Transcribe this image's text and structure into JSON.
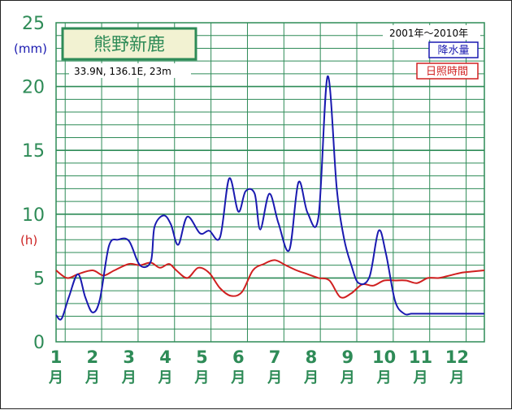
{
  "station": {
    "name": "熊野新鹿",
    "coords": "33.9N,  136.1E,  23m"
  },
  "period": "2001年～2010年",
  "colors": {
    "grid": "#2e8b57",
    "precip": "#1a1ab0",
    "sunshine": "#d02020",
    "title_bg": "#f2f2d2"
  },
  "chart_data": {
    "type": "line",
    "y_units_left": [
      "(mm)",
      "(h)"
    ],
    "y_ticks": [
      "0",
      "5",
      "10",
      "15",
      "20",
      "25"
    ],
    "ylim": [
      0,
      25
    ],
    "xlim": [
      1,
      12.75
    ],
    "month_numbers": [
      "1",
      "2",
      "3",
      "4",
      "5",
      "6",
      "7",
      "8",
      "9",
      "10",
      "11",
      "12"
    ],
    "month_kanji": "月",
    "legend": [
      "降水量",
      "日照時間"
    ],
    "series": [
      {
        "name": "降水量",
        "x": [
          1,
          1.15,
          1.35,
          1.6,
          1.8,
          2.0,
          2.2,
          2.45,
          2.7,
          3.0,
          3.3,
          3.6,
          3.7,
          3.95,
          4.15,
          4.35,
          4.6,
          4.95,
          5.2,
          5.5,
          5.75,
          6.0,
          6.2,
          6.45,
          6.6,
          6.85,
          7.1,
          7.4,
          7.65,
          7.9,
          8.2,
          8.45,
          8.7,
          8.9,
          9.1,
          9.3,
          9.6,
          9.85,
          10.05,
          10.3,
          10.55,
          10.75,
          10.95,
          11.2,
          11.45,
          11.7,
          12.0,
          12.3,
          12.6,
          12.75
        ],
        "values": [
          2.1,
          1.8,
          3.5,
          5.3,
          3.5,
          2.3,
          3.3,
          7.5,
          8.0,
          7.9,
          6.0,
          6.3,
          9.0,
          9.9,
          9.2,
          7.6,
          9.8,
          8.5,
          8.7,
          8.2,
          12.8,
          10.2,
          11.8,
          11.6,
          8.8,
          11.6,
          9.3,
          7.2,
          12.5,
          10.1,
          9.8,
          20.8,
          12.0,
          8.1,
          6.0,
          4.6,
          5.1,
          8.7,
          6.9,
          3.2,
          2.2,
          2.2,
          2.2,
          2.2,
          2.2,
          2.2,
          2.2,
          2.2,
          2.2,
          2.2
        ]
      },
      {
        "name": "日照時間",
        "x": [
          1,
          1.3,
          1.6,
          2.0,
          2.3,
          2.6,
          3.0,
          3.3,
          3.6,
          3.85,
          4.1,
          4.3,
          4.6,
          4.9,
          5.2,
          5.5,
          5.8,
          6.1,
          6.4,
          6.7,
          7.0,
          7.3,
          7.6,
          7.9,
          8.2,
          8.5,
          8.8,
          9.1,
          9.4,
          9.7,
          10.0,
          10.3,
          10.6,
          10.9,
          11.2,
          11.5,
          11.8,
          12.1,
          12.4,
          12.75
        ],
        "values": [
          5.6,
          5.0,
          5.3,
          5.6,
          5.2,
          5.6,
          6.1,
          6.0,
          6.2,
          5.8,
          6.1,
          5.6,
          5.0,
          5.8,
          5.4,
          4.2,
          3.6,
          3.9,
          5.6,
          6.1,
          6.4,
          6.0,
          5.6,
          5.3,
          5.0,
          4.8,
          3.5,
          3.8,
          4.5,
          4.4,
          4.8,
          4.8,
          4.8,
          4.6,
          5.0,
          5.0,
          5.2,
          5.4,
          5.5,
          5.6
        ]
      }
    ]
  }
}
